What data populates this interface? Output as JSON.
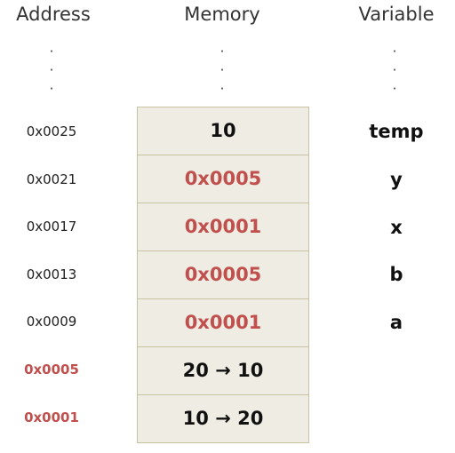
{
  "headers": {
    "address": "Address",
    "memory": "Memory",
    "variable": "Variable"
  },
  "ellipsis": ".\n.\n.",
  "rows": [
    {
      "address": "0x0025",
      "memory": "10",
      "variable": "temp"
    },
    {
      "address": "0x0021",
      "memory": "0x0005",
      "variable": "y"
    },
    {
      "address": "0x0017",
      "memory": "0x0001",
      "variable": "x"
    },
    {
      "address": "0x0013",
      "memory": "0x0005",
      "variable": "b"
    },
    {
      "address": "0x0009",
      "memory": "0x0001",
      "variable": "a"
    },
    {
      "address": "0x0005",
      "memory": "20 → 10",
      "variable": ""
    },
    {
      "address": "0x0001",
      "memory": "10 → 20",
      "variable": ""
    }
  ],
  "colors": {
    "highlight": "#c0504d",
    "memory_fill": "#efede3",
    "memory_border": "#c9c3a3"
  }
}
